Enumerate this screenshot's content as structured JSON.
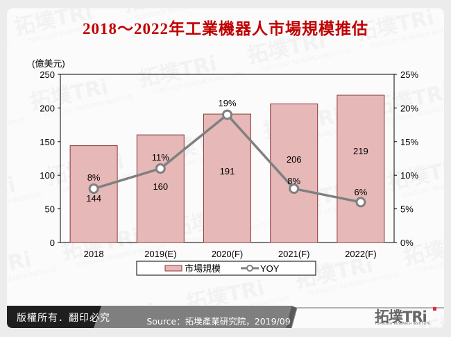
{
  "title": "2018～2022年工業機器人市場規模推估",
  "chart_data": {
    "type": "bar",
    "title": "2018～2022年工業機器人市場規模推估",
    "categories": [
      "2018",
      "2019(E)",
      "2020(F)",
      "2021(F)",
      "2022(F)"
    ],
    "series": [
      {
        "name": "市場規模",
        "type": "bar",
        "axis": "left",
        "values": [
          144,
          160,
          191,
          206,
          219
        ],
        "labels": [
          "144",
          "160",
          "191",
          "206",
          "219"
        ],
        "color": "#e6b8b7",
        "border": "#8b3a3a"
      },
      {
        "name": "YOY",
        "type": "line",
        "axis": "right",
        "values": [
          8,
          11,
          19,
          8,
          6
        ],
        "labels": [
          "8%",
          "11%",
          "19%",
          "8%",
          "6%"
        ],
        "color": "#808080"
      }
    ],
    "ylabel": "(億美元)",
    "ylim": [
      0,
      250
    ],
    "yticks": [
      "0",
      "50",
      "100",
      "150",
      "200",
      "250"
    ],
    "y2lim": [
      0,
      25
    ],
    "y2ticks": [
      "0%",
      "5%",
      "10%",
      "15%",
      "20%",
      "25%"
    ],
    "grid": false,
    "legend_position": "bottom"
  },
  "legend": {
    "bar_label": "市場規模",
    "line_label": "YOY"
  },
  "footer": {
    "copyright": "版權所有．翻印必究",
    "source": "Source：拓墣產業研究院，2019/09",
    "logo_text": "拓墣TRi",
    "logo_subtext": "TOPOLOGY RESEARCH INSTITUTE"
  },
  "colors": {
    "title": "#c00000",
    "bar_fill": "#e6b8b7",
    "bar_border": "#8b3a3a",
    "line": "#808080",
    "footer_dark": "#1e1e1e",
    "footer_gray": "#7f7f7f"
  }
}
